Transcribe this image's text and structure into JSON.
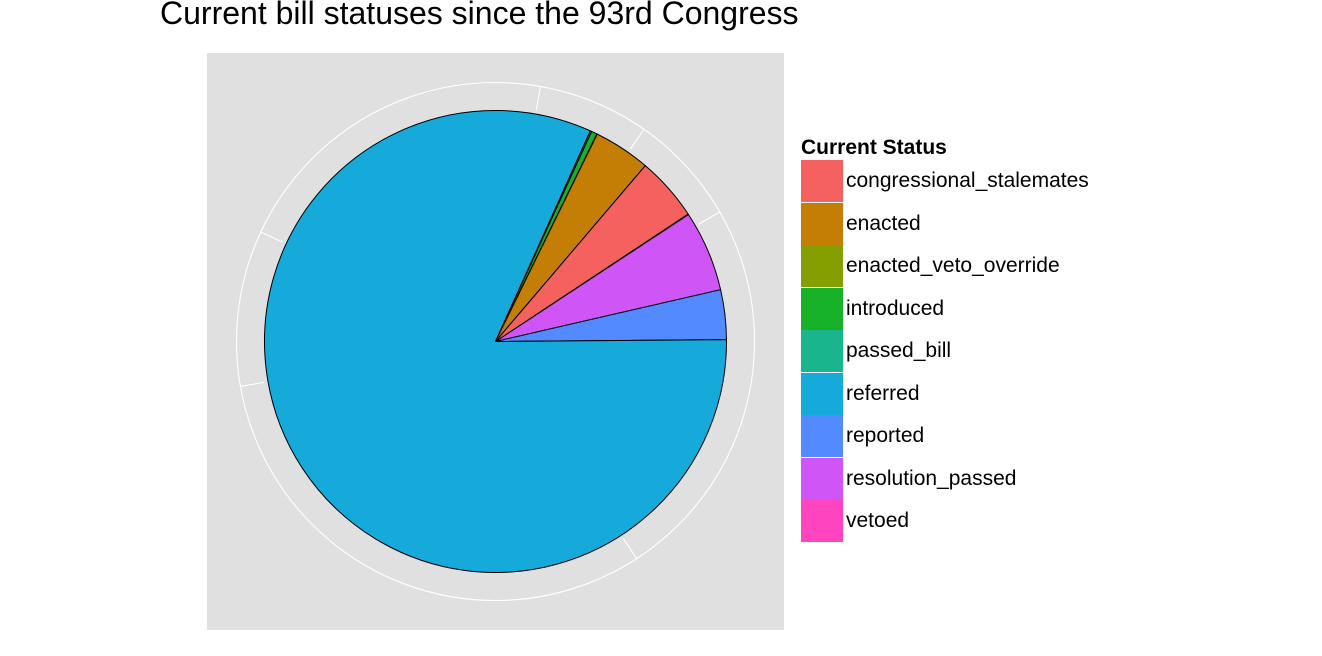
{
  "chart_data": {
    "type": "pie",
    "title": "Current bill statuses since the 93rd Congress",
    "legend_title": "Current Status",
    "legend_position": "right",
    "grid": true,
    "categories": [
      "congressional_stalemates",
      "enacted",
      "enacted_veto_override",
      "introduced",
      "passed_bill",
      "referred",
      "reported",
      "resolution_passed",
      "vetoed"
    ],
    "values": [
      0.045,
      0.04,
      0.0003,
      0.004,
      0.001,
      0.825,
      0.035,
      0.057,
      0.0005
    ],
    "colors": [
      "#F8766D",
      "#C49A00",
      "#7CAE00",
      "#0CB702",
      "#00C08B",
      "#00A9DF",
      "#619CFF",
      "#C77CFF",
      "#FF61C9"
    ],
    "slice_colors": [
      "#F4615E",
      "#C47D05",
      "#869F00",
      "#17B22A",
      "#19B68E",
      "#16AADB",
      "#538AFF",
      "#D055F7",
      "#FF44C0"
    ]
  }
}
